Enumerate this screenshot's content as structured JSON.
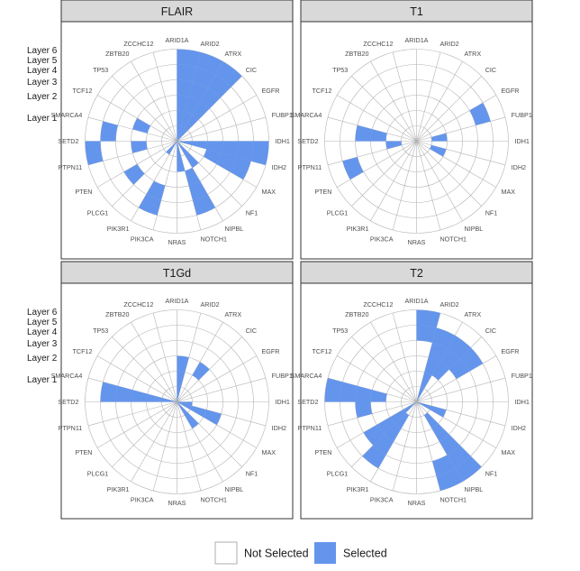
{
  "colors": {
    "selected": "#6495ED",
    "not_selected": "#ffffff",
    "grid": "#b3b3b3",
    "panel_border": "#333333",
    "strip_bg": "#d9d9d9"
  },
  "layers": [
    "Layer 1",
    "Layer 2",
    "Layer 3",
    "Layer 4",
    "Layer 5",
    "Layer 6"
  ],
  "legend": {
    "not_selected": "Not Selected",
    "selected": "Selected"
  },
  "chart_data": {
    "type": "polar-bar",
    "genes": [
      "ARID1A",
      "ARID2",
      "ATRX",
      "CIC",
      "EGFR",
      "FUBP1",
      "IDH1",
      "IDH2",
      "MAX",
      "NF1",
      "NIPBL",
      "NOTCH1",
      "NRAS",
      "PIK3CA",
      "PIK3R1",
      "PLCG1",
      "PTEN",
      "PTPN11",
      "SETD2",
      "SMARCA4",
      "TCF12",
      "TP53",
      "ZBTB20",
      "ZCCHC12"
    ],
    "radial_levels": [
      "Layer 1",
      "Layer 2",
      "Layer 3",
      "Layer 4",
      "Layer 5",
      "Layer 6"
    ],
    "legend_entries": [
      "Not Selected",
      "Selected"
    ],
    "panels": [
      {
        "title": "FLAIR",
        "selected": {
          "ARID1A": [
            1,
            2,
            3,
            4,
            5,
            6
          ],
          "ARID2": [
            1,
            2,
            3,
            4,
            5,
            6
          ],
          "ATRX": [
            1,
            2,
            3,
            4,
            5,
            6
          ],
          "IDH1": [
            1,
            2,
            3,
            4,
            5,
            6
          ],
          "IDH2": [
            3,
            4,
            5
          ],
          "NF1": [
            1,
            2
          ],
          "NIPBL": [
            3,
            4,
            5
          ],
          "NOTCH1": [
            1,
            2
          ],
          "PIK3CA": [
            4,
            5
          ],
          "PIK3R1": [
            1
          ],
          "PLCG1": [
            4
          ],
          "PTPN11": [
            3,
            6
          ],
          "SETD2": [
            5
          ],
          "SMARCA4": [
            3
          ]
        }
      },
      {
        "title": "T1",
        "selected": {
          "EGFR": [
            5
          ],
          "FUBP1": [
            2
          ],
          "IDH2": [
            2
          ],
          "PTEN": [
            5
          ],
          "PTPN11": [
            2
          ],
          "SETD2": [
            3,
            4
          ]
        }
      },
      {
        "title": "T1Gd",
        "selected": {
          "ARID1A": [
            1,
            2,
            3
          ],
          "ATRX": [
            3
          ],
          "IDH1": [
            1
          ],
          "IDH2": [
            1,
            2,
            3
          ],
          "NF1": [
            1,
            2
          ],
          "SETD2": [
            1,
            2,
            3,
            4,
            5
          ]
        }
      },
      {
        "title": "T2",
        "selected": {
          "ARID1A": [
            5,
            6
          ],
          "ARID2": [
            1,
            2,
            3,
            4,
            5
          ],
          "ATRX": [
            3,
            4,
            5
          ],
          "CIC": [
            4,
            5
          ],
          "IDH2": [
            1,
            2
          ],
          "NF1": [
            2,
            3,
            4,
            5,
            6
          ],
          "NIPBL": [
            5,
            6
          ],
          "PIK3R1": [
            2,
            3,
            4,
            5
          ],
          "PLCG1": [
            1,
            2,
            3,
            4
          ],
          "PTPN11": [
            4
          ],
          "SETD2": [
            3,
            4,
            5,
            6
          ]
        }
      }
    ]
  }
}
